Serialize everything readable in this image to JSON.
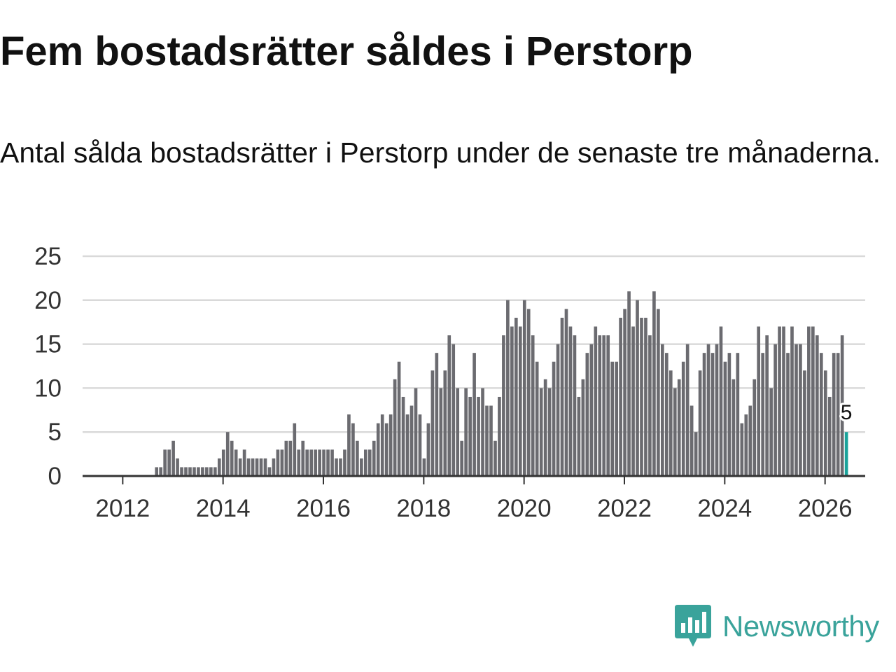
{
  "header": {
    "title": "Fem bostadsrätter såldes i Perstorp",
    "subtitle": "Antal sålda bostadsrätter i Perstorp under de senaste tre månaderna."
  },
  "brand": {
    "name": "Newsworthy",
    "icon": "newsworthy-logo-icon",
    "color": "#3aa39b"
  },
  "colors": {
    "bar": "#6b6b70",
    "highlight": "#1aa39b",
    "grid": "#d9d9d9",
    "axis": "#333333"
  },
  "chart_data": {
    "type": "bar",
    "title": "Fem bostadsrätter såldes i Perstorp",
    "subtitle": "Antal sålda bostadsrätter i Perstorp under de senaste tre månaderna.",
    "xlabel": "",
    "ylabel": "",
    "start": "2011-06",
    "frequency": "monthly",
    "xlim": [
      2011.2,
      2026.8
    ],
    "ylim": [
      0,
      25
    ],
    "yticks": [
      0,
      5,
      10,
      15,
      20,
      25
    ],
    "xticks": [
      2012,
      2014,
      2016,
      2018,
      2020,
      2022,
      2024,
      2026
    ],
    "grid": true,
    "values": [
      0,
      0,
      0,
      0,
      0,
      0,
      0,
      0,
      0,
      0,
      0,
      0,
      0,
      0,
      0,
      1,
      1,
      3,
      3,
      4,
      2,
      1,
      1,
      1,
      1,
      1,
      1,
      1,
      1,
      1,
      2,
      3,
      5,
      4,
      3,
      2,
      3,
      2,
      2,
      2,
      2,
      2,
      1,
      2,
      3,
      3,
      4,
      4,
      6,
      3,
      4,
      3,
      3,
      3,
      3,
      3,
      3,
      3,
      2,
      2,
      3,
      7,
      6,
      4,
      2,
      3,
      3,
      4,
      6,
      7,
      6,
      7,
      11,
      13,
      9,
      7,
      8,
      10,
      7,
      2,
      6,
      12,
      14,
      10,
      12,
      16,
      15,
      10,
      4,
      10,
      9,
      14,
      9,
      10,
      8,
      8,
      4,
      9,
      16,
      20,
      17,
      18,
      17,
      20,
      19,
      16,
      13,
      10,
      11,
      10,
      13,
      15,
      18,
      19,
      17,
      16,
      9,
      11,
      14,
      15,
      17,
      16,
      16,
      16,
      13,
      13,
      18,
      19,
      21,
      17,
      20,
      18,
      18,
      16,
      21,
      19,
      15,
      14,
      12,
      10,
      11,
      13,
      15,
      8,
      5,
      12,
      14,
      15,
      14,
      15,
      17,
      13,
      14,
      11,
      14,
      6,
      7,
      8,
      11,
      17,
      14,
      16,
      10,
      15,
      17,
      17,
      14,
      17,
      15,
      15,
      12,
      17,
      17,
      16,
      14,
      12,
      9,
      14,
      14,
      16,
      5
    ],
    "highlight_last": true,
    "last_label": "5"
  }
}
